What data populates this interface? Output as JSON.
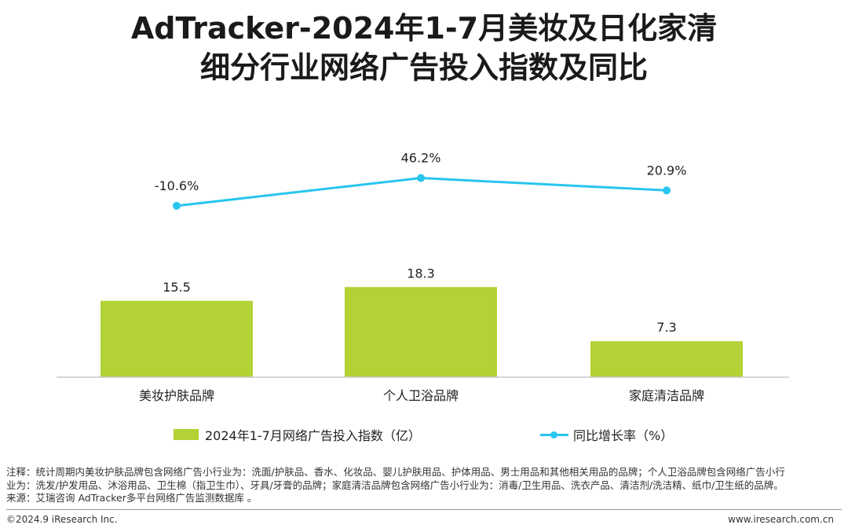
{
  "title_line1": "AdTracker-2024年1-7月美妆及日化家清",
  "title_line2": "细分行业网络广告投入指数及同比",
  "chart_data": {
    "type": "bar",
    "categories": [
      "美妆护肤品牌",
      "个人卫浴品牌",
      "家庭清洁品牌"
    ],
    "series": [
      {
        "name": "2024年1-7月网络广告投入指数（亿）",
        "type": "bar",
        "values": [
          15.5,
          18.3,
          7.3
        ],
        "labels": [
          "15.5",
          "18.3",
          "7.3"
        ],
        "color": "#b2d235"
      },
      {
        "name": "同比增长率（%）",
        "type": "line",
        "values": [
          -10.6,
          46.2,
          20.9
        ],
        "labels": [
          "-10.6%",
          "46.2%",
          "20.9%"
        ],
        "color": "#29c5ee"
      }
    ],
    "legend_position": "bottom",
    "grid": false
  },
  "notes": {
    "line1": "注释：统计周期内美妆护肤品牌包含网络广告小行业为：洗面/护肤品、香水、化妆品、婴儿护肤用品、护体用品、男士用品和其他相关用品的品牌；个人卫浴品牌包含网络广告小行",
    "line2": "业为：洗发/护发用品、沐浴用品、卫生棉（指卫生巾）、牙具/牙膏的品牌；家庭清洁品牌包含网络广告小行业为：消毒/卫生用品、洗衣产品、清洁剂/洗洁精、纸巾/卫生纸的品牌。",
    "line3": "来源：艾瑞咨询 AdTracker多平台网络广告监测数据库 。"
  },
  "footer": {
    "copyright": "©2024.9 iResearch Inc.",
    "url": "www.iresearch.com.cn"
  }
}
